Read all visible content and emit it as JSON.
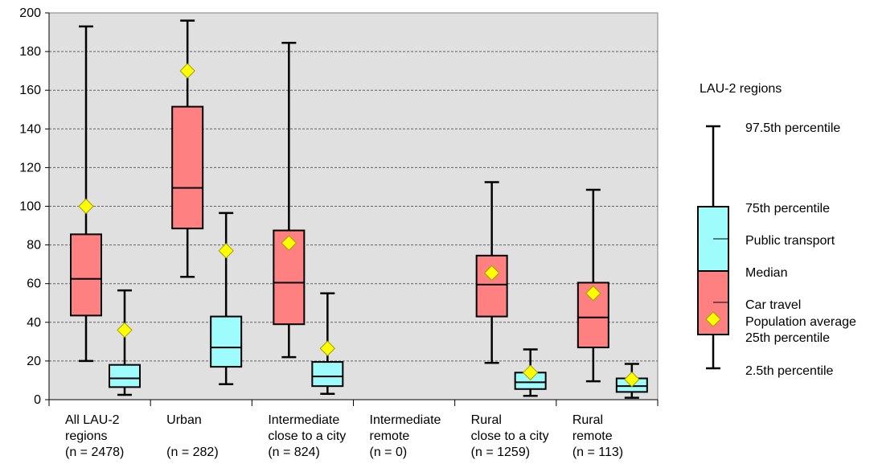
{
  "chart_data": {
    "type": "boxplot",
    "ylim": [
      0,
      200
    ],
    "yticks": [
      0,
      20,
      40,
      60,
      80,
      100,
      120,
      140,
      160,
      180,
      200
    ],
    "grid": "horizontal dashed",
    "plot_background": "#e0e0e0",
    "colors": {
      "car": "#ff8080",
      "public": "#9ffcfc",
      "average": "#ffff00"
    },
    "groups": [
      {
        "label_lines": [
          "All LAU-2",
          "regions",
          "(n = 2478)"
        ],
        "car": {
          "p2_5": 20,
          "p25": 43.5,
          "median": 62.5,
          "p75": 85.5,
          "p97_5": 193,
          "mean": 100
        },
        "public": {
          "p2_5": 2.5,
          "p25": 6.5,
          "median": 11,
          "p75": 18,
          "p97_5": 56.5,
          "mean": 36
        }
      },
      {
        "label_lines": [
          "Urban",
          "",
          "(n =  282)"
        ],
        "car": {
          "p2_5": 63.5,
          "p25": 88.5,
          "median": 109.5,
          "p75": 151.5,
          "p97_5": 196,
          "mean": 170
        },
        "public": {
          "p2_5": 8,
          "p25": 17,
          "median": 27,
          "p75": 43,
          "p97_5": 96.5,
          "mean": 77
        }
      },
      {
        "label_lines": [
          "Intermediate",
          "close to a city",
          "(n =  824)"
        ],
        "car": {
          "p2_5": 22,
          "p25": 39,
          "median": 60.5,
          "p75": 87.5,
          "p97_5": 184.5,
          "mean": 81
        },
        "public": {
          "p2_5": 3,
          "p25": 7,
          "median": 12,
          "p75": 19.5,
          "p97_5": 55,
          "mean": 26.5
        }
      },
      {
        "label_lines": [
          "Intermediate",
          "remote",
          "(n =     0)"
        ],
        "car": null,
        "public": null
      },
      {
        "label_lines": [
          "Rural",
          "close to a city",
          "(n = 1259)"
        ],
        "car": {
          "p2_5": 19,
          "p25": 43,
          "median": 59.5,
          "p75": 74.5,
          "p97_5": 112.5,
          "mean": 65.5
        },
        "public": {
          "p2_5": 2,
          "p25": 5.5,
          "median": 9,
          "p75": 14,
          "p97_5": 26,
          "mean": 14
        }
      },
      {
        "label_lines": [
          "Rural",
          "remote",
          "(n =  113)"
        ],
        "car": {
          "p2_5": 9.5,
          "p25": 27,
          "median": 42.5,
          "p75": 60.5,
          "p97_5": 108.5,
          "mean": 55
        },
        "public": {
          "p2_5": 1,
          "p25": 4,
          "median": 7,
          "p75": 11,
          "p97_5": 18.5,
          "mean": 10.5
        }
      }
    ],
    "legend": {
      "title": "LAU-2 regions",
      "p97_5": "97.5th percentile",
      "p75": "75th percentile",
      "public": "Public transport",
      "median": "Median",
      "car": "Car travel",
      "average": "Population average",
      "p25": "25th percentile",
      "p2_5": "2.5th percentile"
    }
  }
}
